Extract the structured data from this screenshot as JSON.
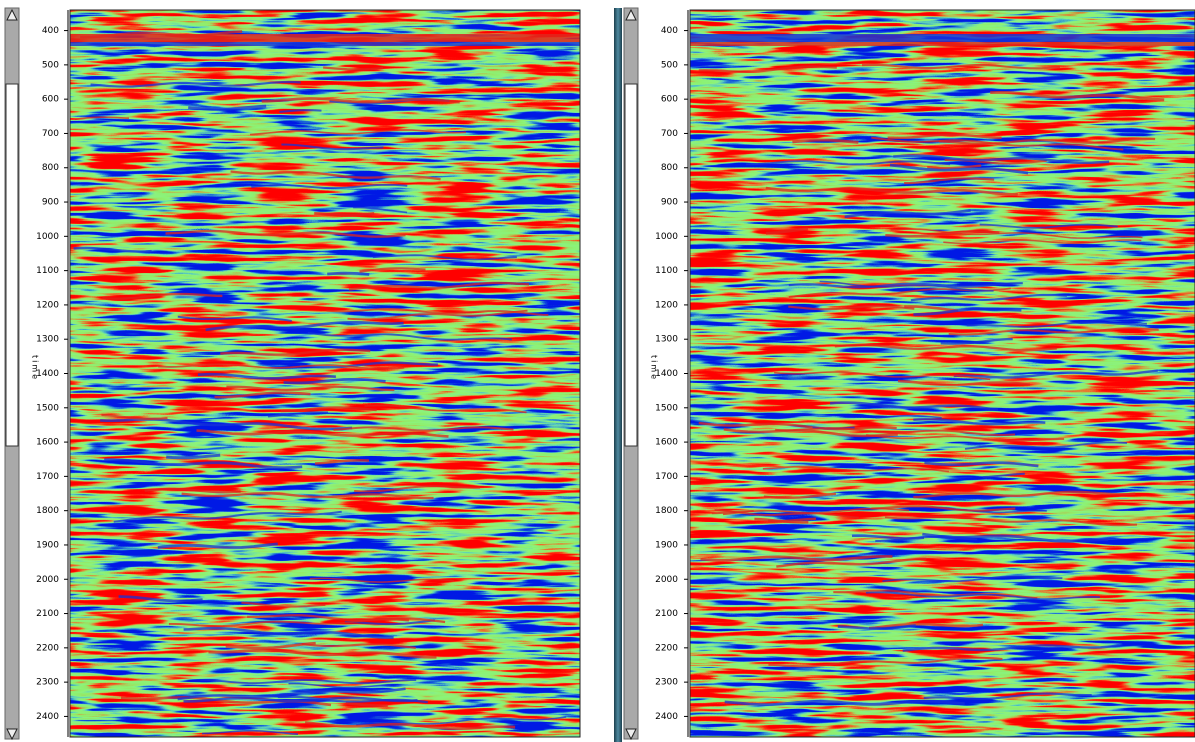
{
  "panels": [
    {
      "axis_label": "time",
      "range": [
        340,
        2460
      ],
      "ticks": [
        400,
        500,
        600,
        700,
        800,
        900,
        1000,
        1100,
        1200,
        1300,
        1400,
        1500,
        1600,
        1700,
        1800,
        1900,
        2000,
        2100,
        2200,
        2300,
        2400
      ]
    },
    {
      "axis_label": "time",
      "range": [
        340,
        2460
      ],
      "ticks": [
        400,
        500,
        600,
        700,
        800,
        900,
        1000,
        1100,
        1200,
        1300,
        1400,
        1500,
        1600,
        1700,
        1800,
        1900,
        2000,
        2100,
        2200,
        2300,
        2400
      ]
    }
  ]
}
